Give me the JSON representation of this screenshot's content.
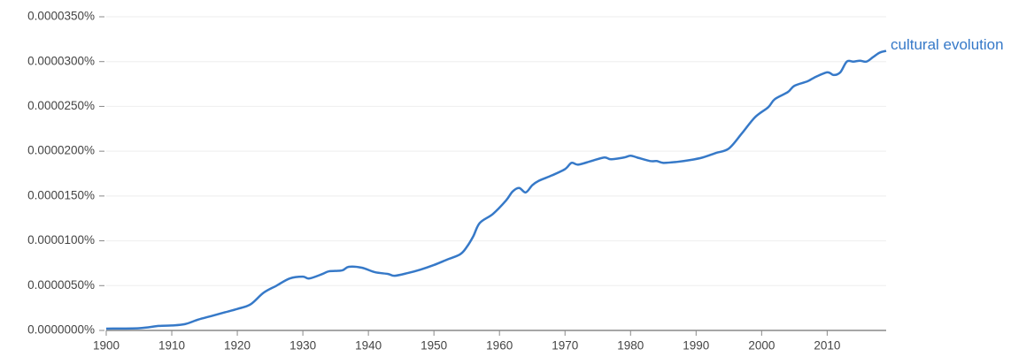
{
  "chart_data": {
    "type": "line",
    "x": [
      1900,
      1905,
      1908,
      1910,
      1912,
      1914,
      1916,
      1918,
      1920,
      1922,
      1924,
      1926,
      1928,
      1930,
      1931,
      1933,
      1934,
      1936,
      1937,
      1939,
      1941,
      1943,
      1944,
      1946,
      1948,
      1950,
      1952,
      1954,
      1955,
      1956,
      1957,
      1959,
      1961,
      1962,
      1963,
      1964,
      1965,
      1966,
      1968,
      1970,
      1971,
      1972,
      1974,
      1976,
      1977,
      1979,
      1980,
      1981,
      1983,
      1984,
      1985,
      1987,
      1989,
      1991,
      1993,
      1995,
      1997,
      1999,
      2001,
      2002,
      2004,
      2005,
      2007,
      2008,
      2010,
      2011,
      2012,
      2013,
      2014,
      2015,
      2016,
      2017,
      2018,
      2019
    ],
    "series": [
      {
        "name": "cultural evolution",
        "color": "#3679c8",
        "values": [
          2e-07,
          2.5e-07,
          5e-07,
          5.5e-07,
          7e-07,
          1.2e-06,
          1.6e-06,
          2e-06,
          2.4e-06,
          2.9e-06,
          4.2e-06,
          5e-06,
          5.8e-06,
          6e-06,
          5.8e-06,
          6.3e-06,
          6.6e-06,
          6.7e-06,
          7.1e-06,
          7e-06,
          6.5e-06,
          6.3e-06,
          6.1e-06,
          6.4e-06,
          6.8e-06,
          7.3e-06,
          7.9e-06,
          8.5e-06,
          9.3e-06,
          1.05e-05,
          1.2e-05,
          1.3e-05,
          1.45e-05,
          1.55e-05,
          1.59e-05,
          1.54e-05,
          1.62e-05,
          1.67e-05,
          1.73e-05,
          1.8e-05,
          1.87e-05,
          1.85e-05,
          1.89e-05,
          1.93e-05,
          1.91e-05,
          1.93e-05,
          1.95e-05,
          1.93e-05,
          1.89e-05,
          1.89e-05,
          1.87e-05,
          1.88e-05,
          1.9e-05,
          1.93e-05,
          1.98e-05,
          2.03e-05,
          2.2e-05,
          2.38e-05,
          2.49e-05,
          2.58e-05,
          2.66e-05,
          2.73e-05,
          2.78e-05,
          2.82e-05,
          2.88e-05,
          2.85e-05,
          2.88e-05,
          3e-05,
          3e-05,
          3.01e-05,
          3e-05,
          3.05e-05,
          3.1e-05,
          3.12e-05
        ]
      }
    ],
    "xlim": [
      1900,
      2019
    ],
    "xticks": [
      1900,
      1910,
      1920,
      1930,
      1940,
      1950,
      1960,
      1970,
      1980,
      1990,
      2000,
      2010
    ],
    "ylim": [
      0,
      3.5e-05
    ],
    "yticks": [
      {
        "value": 0,
        "label": "0.0000000%"
      },
      {
        "value": 5e-06,
        "label": "0.0000050%"
      },
      {
        "value": 1e-05,
        "label": "0.0000100%"
      },
      {
        "value": 1.5e-05,
        "label": "0.0000150%"
      },
      {
        "value": 2e-05,
        "label": "0.0000200%"
      },
      {
        "value": 2.5e-05,
        "label": "0.0000250%"
      },
      {
        "value": 3e-05,
        "label": "0.0000300%"
      },
      {
        "value": 3.5e-05,
        "label": "0.0000350%"
      }
    ],
    "grid": true
  }
}
